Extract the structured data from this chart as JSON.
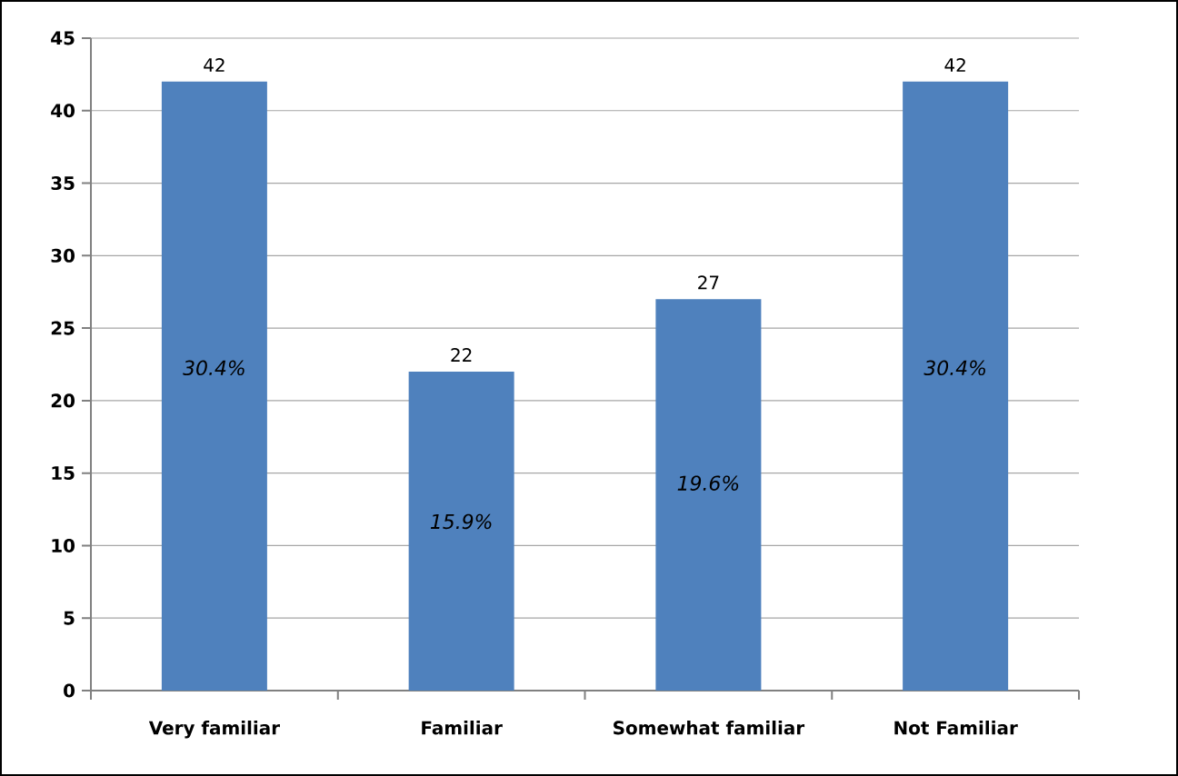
{
  "chart_data": {
    "type": "bar",
    "categories": [
      "Very familiar",
      "Familiar",
      "Somewhat familiar",
      "Not Familiar"
    ],
    "values": [
      42,
      22,
      27,
      42
    ],
    "color": "#4f81bd",
    "ylim": [
      0,
      45
    ],
    "yticks": [
      0,
      5,
      10,
      15,
      20,
      25,
      30,
      35,
      40,
      45
    ],
    "grid": "y",
    "data_labels": true,
    "annotations": [
      "30.4%",
      "15.9%",
      "19.6%",
      "30.4%"
    ]
  }
}
